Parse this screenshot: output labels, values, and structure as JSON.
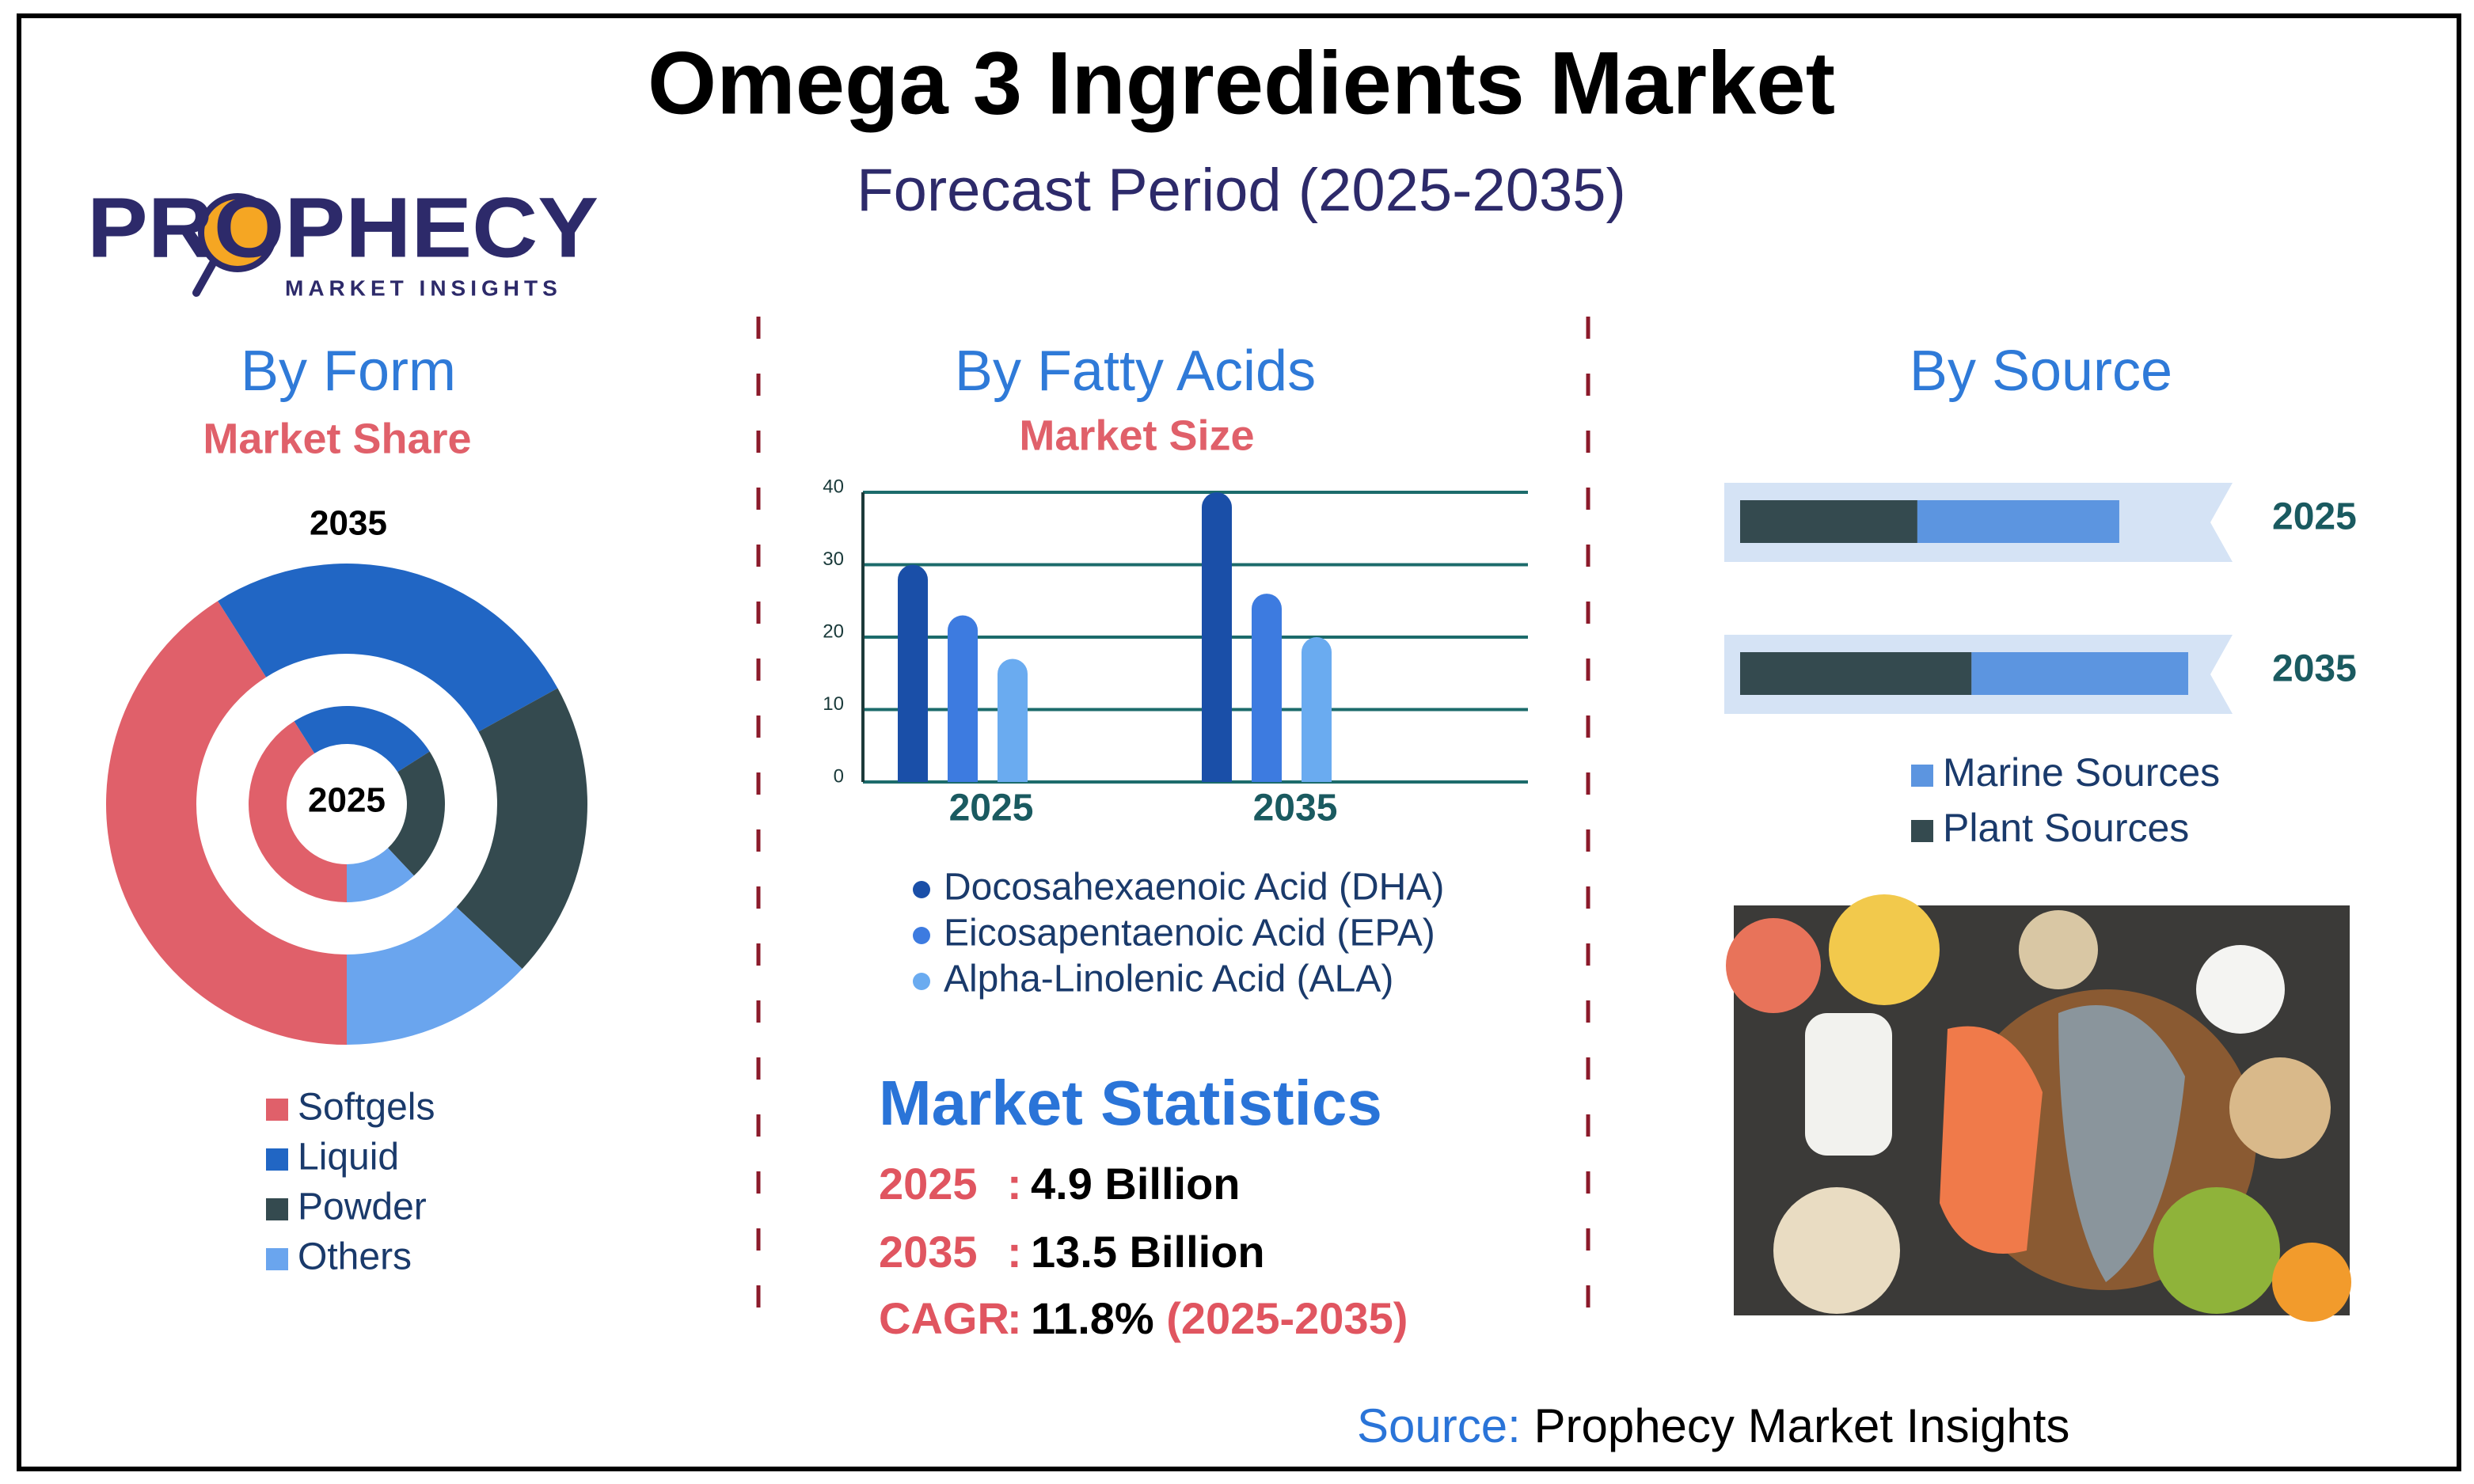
{
  "title": "Omega 3 Ingredients Market",
  "subtitle": "Forecast Period (2025-2035)",
  "logo": {
    "name": "PROPHECY",
    "tagline": "MARKET INSIGHTS"
  },
  "chart_data": [
    {
      "type": "donut",
      "title": "By Form",
      "subtitle": "Market Share",
      "categories": [
        "Softgels",
        "Liquid",
        "Powder",
        "Others"
      ],
      "colors": [
        "#e0606a",
        "#2166c4",
        "#344a4f",
        "#6aa5ee"
      ],
      "rings": [
        {
          "label": "2035",
          "values": [
            41,
            26,
            20,
            13
          ]
        },
        {
          "label": "2025",
          "values": [
            41,
            25,
            22,
            12
          ]
        }
      ]
    },
    {
      "type": "bar",
      "title": "By Fatty Acids",
      "subtitle": "Market Size",
      "categories": [
        "2025",
        "2035"
      ],
      "series": [
        {
          "name": "Docosahexaenoic Acid (DHA)",
          "color": "#1a4fa8",
          "values": [
            30,
            40
          ]
        },
        {
          "name": "Eicosapentaenoic Acid (EPA)",
          "color": "#3d7be0",
          "values": [
            23,
            26
          ]
        },
        {
          "name": "Alpha-Linolenic Acid (ALA)",
          "color": "#6aabf0",
          "values": [
            17,
            20
          ]
        }
      ],
      "ylim": [
        0,
        40
      ],
      "yticks": [
        0,
        10,
        20,
        30,
        40
      ],
      "grid": true
    },
    {
      "type": "stacked_barh",
      "title": "By Source",
      "categories": [
        "2025",
        "2035"
      ],
      "series": [
        {
          "name": "Marine Sources",
          "color": "#5c95e0",
          "values": [
            41,
            44
          ]
        },
        {
          "name": "Plant Sources",
          "color": "#344a4f",
          "values": [
            36,
            47
          ]
        }
      ],
      "xlim": [
        0,
        100
      ]
    }
  ],
  "statistics": {
    "title": "Market Statistics",
    "separator": ":",
    "rows": [
      {
        "label": "2025",
        "value": "4.9 Billion"
      },
      {
        "label": "2035",
        "value": "13.5 Billion"
      },
      {
        "label": "CAGR",
        "value": "11.8%",
        "period": "(2025-2035)"
      }
    ]
  },
  "source": {
    "label": "Source:",
    "text": "Prophecy Market Insights"
  }
}
